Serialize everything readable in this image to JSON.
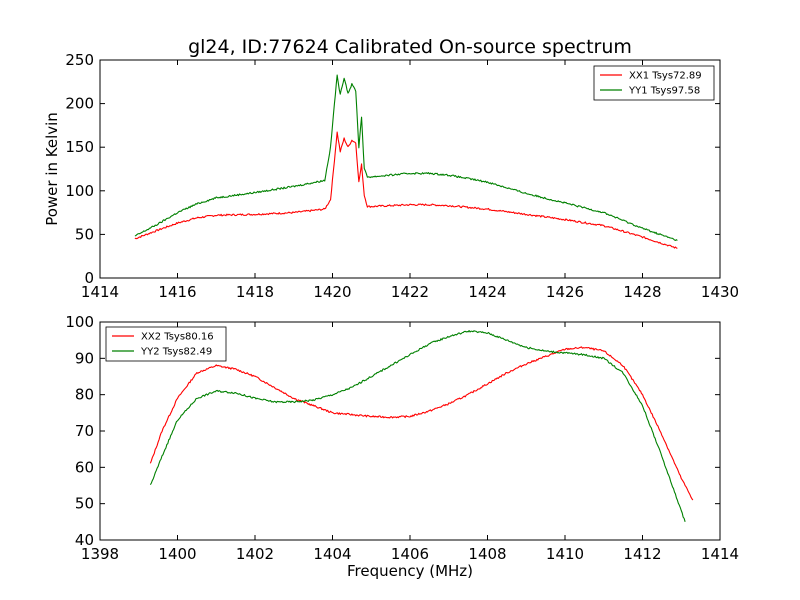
{
  "figure": {
    "title": "gl24, ID:77624 Calibrated On-source spectrum"
  },
  "chart_data": [
    {
      "type": "line",
      "title": "gl24, ID:77624 Calibrated On-source spectrum",
      "xlabel": "",
      "ylabel": "Power in Kelvin",
      "xlim": [
        1414,
        1430
      ],
      "ylim": [
        0,
        250
      ],
      "xticks": [
        1414,
        1416,
        1418,
        1420,
        1422,
        1424,
        1426,
        1428,
        1430
      ],
      "yticks": [
        0,
        50,
        100,
        150,
        200,
        250
      ],
      "legend": "top-right",
      "series": [
        {
          "name": "XX1 Tsys72.89",
          "color": "#ff0000",
          "x": [
            1414.9,
            1415.5,
            1416.0,
            1416.5,
            1417.0,
            1418.0,
            1419.0,
            1419.8,
            1419.95,
            1420.05,
            1420.12,
            1420.2,
            1420.3,
            1420.4,
            1420.5,
            1420.6,
            1420.68,
            1420.75,
            1420.82,
            1420.9,
            1421.0,
            1421.5,
            1422.0,
            1422.5,
            1423.0,
            1424.0,
            1425.0,
            1426.0,
            1427.0,
            1428.0,
            1428.9
          ],
          "values": [
            45,
            55,
            63,
            69,
            72,
            73,
            75,
            79,
            90,
            135,
            167,
            145,
            160,
            150,
            158,
            155,
            110,
            130,
            95,
            82,
            82,
            83,
            84,
            84,
            83,
            79,
            73,
            67,
            60,
            47,
            34
          ]
        },
        {
          "name": "YY1 Tsys97.58",
          "color": "#008000",
          "x": [
            1414.9,
            1415.5,
            1416.0,
            1416.5,
            1417.0,
            1418.0,
            1419.0,
            1419.8,
            1419.95,
            1420.05,
            1420.12,
            1420.2,
            1420.3,
            1420.4,
            1420.5,
            1420.6,
            1420.68,
            1420.75,
            1420.82,
            1420.9,
            1421.0,
            1421.5,
            1422.0,
            1422.5,
            1423.0,
            1424.0,
            1425.0,
            1426.0,
            1427.0,
            1428.0,
            1428.9
          ],
          "values": [
            48,
            62,
            75,
            85,
            92,
            98,
            105,
            112,
            150,
            200,
            232,
            210,
            230,
            212,
            222,
            215,
            150,
            185,
            125,
            116,
            116,
            118,
            120,
            120,
            118,
            110,
            97,
            86,
            75,
            57,
            43
          ]
        }
      ]
    },
    {
      "type": "line",
      "title": "",
      "xlabel": "Frequency (MHz)",
      "ylabel": "",
      "xlim": [
        1398,
        1414
      ],
      "ylim": [
        40,
        100
      ],
      "xticks": [
        1398,
        1400,
        1402,
        1404,
        1406,
        1408,
        1410,
        1412,
        1414
      ],
      "yticks": [
        40,
        50,
        60,
        70,
        80,
        90,
        100
      ],
      "legend": "top-left",
      "series": [
        {
          "name": "XX2 Tsys80.16",
          "color": "#ff0000",
          "x": [
            1399.3,
            1399.6,
            1400.0,
            1400.5,
            1401.0,
            1401.5,
            1402.0,
            1402.5,
            1403.0,
            1403.5,
            1404.0,
            1404.5,
            1405.0,
            1405.5,
            1406.0,
            1406.5,
            1407.0,
            1407.5,
            1408.0,
            1408.5,
            1409.0,
            1409.5,
            1410.0,
            1410.5,
            1411.0,
            1411.5,
            1412.0,
            1412.5,
            1413.0,
            1413.3
          ],
          "values": [
            61,
            70,
            79,
            86,
            88,
            87,
            85,
            82,
            79,
            77,
            75,
            74.5,
            74,
            73.8,
            74,
            75.5,
            77.5,
            80,
            83,
            86,
            88.5,
            90.5,
            92.5,
            93,
            92,
            88,
            80,
            69,
            57,
            51
          ]
        },
        {
          "name": "YY2 Tsys82.49",
          "color": "#008000",
          "x": [
            1399.3,
            1399.6,
            1400.0,
            1400.5,
            1401.0,
            1401.5,
            1402.0,
            1402.5,
            1403.0,
            1403.5,
            1404.0,
            1404.5,
            1405.0,
            1405.5,
            1406.0,
            1406.5,
            1407.0,
            1407.5,
            1408.0,
            1408.5,
            1409.0,
            1409.5,
            1410.0,
            1410.5,
            1411.0,
            1411.5,
            1412.0,
            1412.5,
            1413.0,
            1413.1
          ],
          "values": [
            55,
            63,
            73,
            79,
            81,
            80.5,
            79,
            78,
            78,
            78.5,
            80,
            82,
            85,
            88,
            91,
            94,
            96,
            97.5,
            97,
            95,
            93,
            92,
            91.5,
            91,
            90,
            86,
            77,
            63,
            48,
            45
          ]
        }
      ]
    }
  ]
}
